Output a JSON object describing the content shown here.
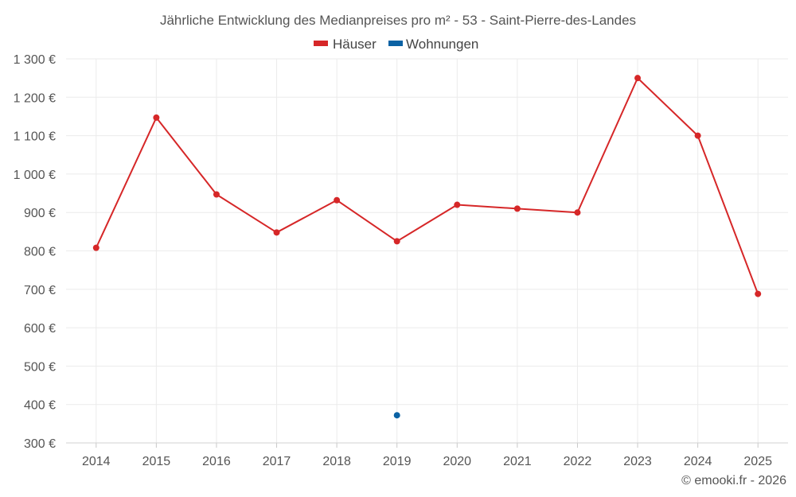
{
  "chart_data": {
    "type": "line",
    "title": "Jährliche Entwicklung des Medianpreises pro m² - 53 - Saint-Pierre-des-Landes",
    "categories": [
      "2014",
      "2015",
      "2016",
      "2017",
      "2018",
      "2019",
      "2020",
      "2021",
      "2022",
      "2023",
      "2024",
      "2025"
    ],
    "y_ticks": [
      "300 €",
      "400 €",
      "500 €",
      "600 €",
      "700 €",
      "800 €",
      "900 €",
      "1 000 €",
      "1 100 €",
      "1 200 €",
      "1 300 €"
    ],
    "ylim": [
      300,
      1300
    ],
    "grid": true,
    "legend_position": "top-center",
    "series": [
      {
        "name": "Häuser",
        "color": "#d62728",
        "values": [
          808,
          1147,
          947,
          848,
          932,
          825,
          920,
          910,
          900,
          1250,
          1100,
          688
        ]
      },
      {
        "name": "Wohnungen",
        "color": "#0b62a4",
        "values": [
          null,
          null,
          null,
          null,
          null,
          372,
          null,
          null,
          null,
          null,
          null,
          null
        ]
      }
    ]
  },
  "credit": "© emooki.fr - 2026"
}
